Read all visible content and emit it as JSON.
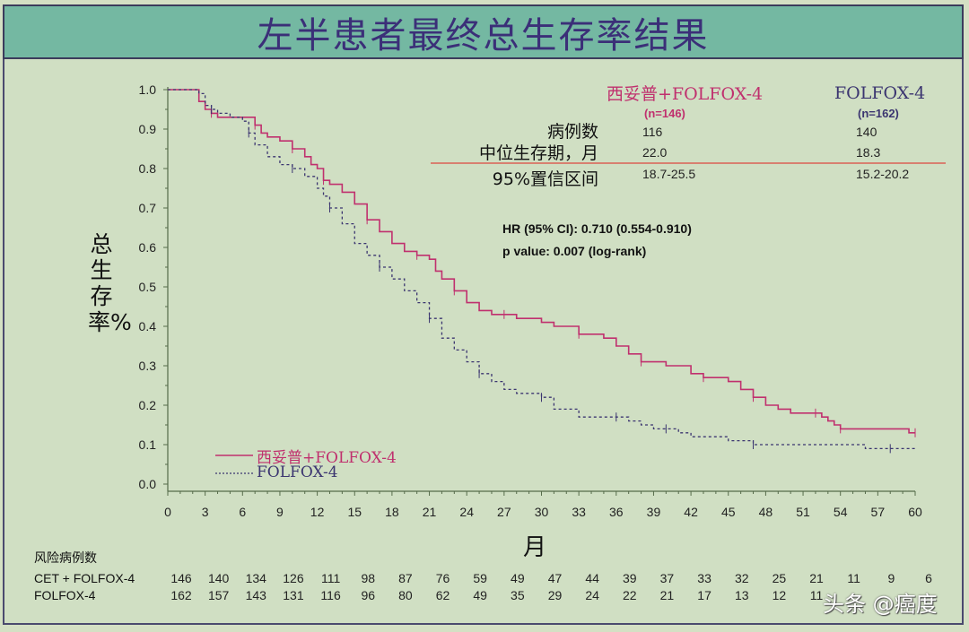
{
  "title": "左半患者最终总生存率结果",
  "stats_table": {
    "groups": [
      {
        "name": "西妥普+FOLFOX-4",
        "n": "(n=146)",
        "color": "#c0306e"
      },
      {
        "name": "FOLFOX-4",
        "n": "(n=162)",
        "color": "#3b3570"
      }
    ],
    "rows": [
      {
        "label": "病例数",
        "values": [
          "116",
          "140"
        ]
      },
      {
        "label": "中位生存期，月",
        "values": [
          "22.0",
          "18.3"
        ]
      },
      {
        "label": "95%置信区间",
        "values": [
          "18.7-25.5",
          "15.2-20.2"
        ]
      }
    ]
  },
  "annotations": {
    "hr": "HR (95% CI): 0.710 (0.554-0.910)",
    "p_value": "p value:  0.007 (log-rank)"
  },
  "legend": {
    "cet": "西妥普+FOLFOX-4",
    "folfox": "FOLFOX-4"
  },
  "axes": {
    "ylabel": "总生存率%",
    "xlabel": "月"
  },
  "risk_table": {
    "title": "风险病例数",
    "rows": [
      {
        "label": "CET + FOLFOX-4",
        "values": [
          146,
          140,
          134,
          126,
          111,
          98,
          87,
          76,
          59,
          49,
          47,
          44,
          39,
          37,
          33,
          32,
          25,
          21,
          11,
          9,
          6
        ]
      },
      {
        "label": "FOLFOX-4",
        "values": [
          162,
          157,
          143,
          131,
          116,
          96,
          80,
          62,
          49,
          35,
          29,
          24,
          22,
          21,
          17,
          13,
          12,
          11,
          "",
          "",
          ""
        ]
      }
    ]
  },
  "watermark": "头条 @癌度",
  "chart_data": {
    "type": "line",
    "title": "左半患者最终总生存率结果",
    "xlabel": "月",
    "ylabel": "总生存率%",
    "xlim": [
      0,
      60
    ],
    "ylim": [
      0.0,
      1.0
    ],
    "xticks": [
      0,
      3,
      6,
      9,
      12,
      15,
      18,
      21,
      24,
      27,
      30,
      33,
      36,
      39,
      42,
      45,
      48,
      51,
      54,
      57,
      60
    ],
    "yticks": [
      0.0,
      0.1,
      0.2,
      0.3,
      0.4,
      0.5,
      0.6,
      0.7,
      0.8,
      0.9,
      1.0
    ],
    "grid": false,
    "legend_position": "lower-left",
    "series": [
      {
        "name": "西妥普+FOLFOX-4",
        "color": "#c0306e",
        "style": "solid-step",
        "x": [
          0,
          2,
          2.5,
          3,
          3.5,
          4,
          5,
          6,
          7,
          7.5,
          8,
          9,
          10,
          11,
          11.5,
          12,
          12.5,
          13,
          14,
          15,
          16,
          17,
          18,
          19,
          20,
          21,
          21.5,
          22,
          23,
          24,
          25,
          26,
          27,
          28,
          30,
          31,
          33,
          35,
          36,
          37,
          38,
          39,
          40,
          42,
          43,
          44,
          45,
          46,
          47,
          48,
          49,
          50,
          52,
          52.5,
          53,
          53.5,
          54,
          56,
          58,
          59.5,
          60
        ],
        "y": [
          1.0,
          1.0,
          0.97,
          0.95,
          0.94,
          0.93,
          0.93,
          0.93,
          0.91,
          0.89,
          0.88,
          0.87,
          0.85,
          0.83,
          0.81,
          0.8,
          0.77,
          0.76,
          0.74,
          0.71,
          0.67,
          0.64,
          0.61,
          0.59,
          0.58,
          0.57,
          0.54,
          0.52,
          0.49,
          0.46,
          0.44,
          0.43,
          0.43,
          0.42,
          0.41,
          0.4,
          0.38,
          0.37,
          0.35,
          0.33,
          0.31,
          0.31,
          0.3,
          0.28,
          0.27,
          0.27,
          0.26,
          0.24,
          0.22,
          0.2,
          0.19,
          0.18,
          0.18,
          0.17,
          0.16,
          0.15,
          0.14,
          0.14,
          0.14,
          0.13,
          0.13
        ]
      },
      {
        "name": "FOLFOX-4",
        "color": "#3b3570",
        "style": "dashed-step",
        "x": [
          0,
          2,
          2.5,
          3,
          3.5,
          4,
          5,
          6,
          6.5,
          7,
          8,
          9,
          10,
          11,
          12,
          12.5,
          13,
          14,
          15,
          16,
          17,
          18,
          19,
          20,
          21,
          22,
          23,
          24,
          25,
          26,
          27,
          28,
          30,
          31,
          33,
          34,
          36,
          37,
          38,
          39,
          40,
          41,
          42,
          45,
          47,
          50,
          54,
          56,
          58,
          60
        ],
        "y": [
          1.0,
          1.0,
          0.99,
          0.96,
          0.95,
          0.94,
          0.93,
          0.92,
          0.89,
          0.86,
          0.83,
          0.81,
          0.8,
          0.78,
          0.75,
          0.73,
          0.7,
          0.66,
          0.61,
          0.58,
          0.55,
          0.52,
          0.49,
          0.46,
          0.42,
          0.37,
          0.34,
          0.31,
          0.28,
          0.26,
          0.24,
          0.23,
          0.22,
          0.19,
          0.17,
          0.17,
          0.17,
          0.16,
          0.15,
          0.14,
          0.14,
          0.13,
          0.12,
          0.11,
          0.1,
          0.1,
          0.1,
          0.09,
          0.09,
          0.09
        ]
      }
    ]
  }
}
